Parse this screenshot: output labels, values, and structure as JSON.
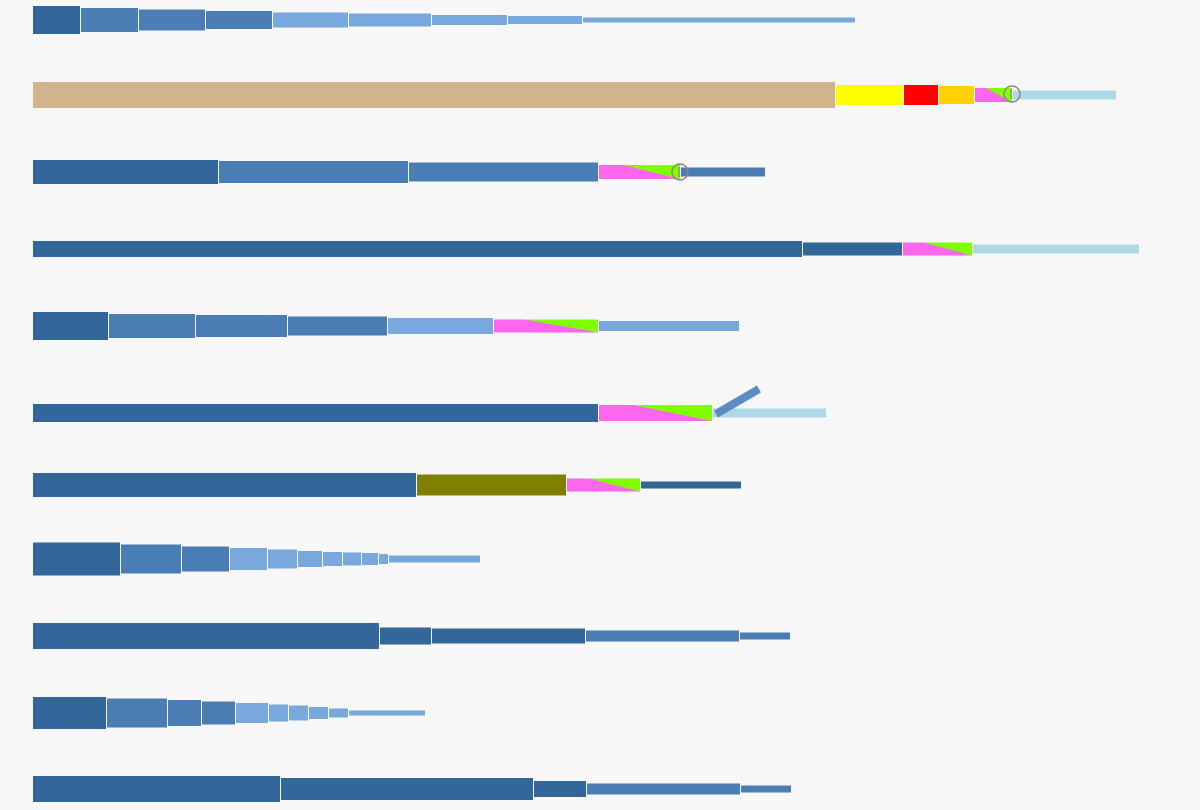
{
  "colors": {
    "background": "#f7f7f8",
    "blue_dark": "#336699",
    "blue_mid": "#4a7db3",
    "blue_light": "#79a9dc",
    "blue_pale": "#add8e6",
    "tan": "#d2b48c",
    "yellow": "#ffff00",
    "red": "#ff0000",
    "amber": "#ffd100",
    "magenta": "#ff66ee",
    "lime": "#7fff00",
    "olive": "#808000",
    "separator": "#ffffff"
  },
  "icons": {
    "marker": "circle-marker-icon",
    "pointer": "diagonal-pointer-icon"
  }
}
